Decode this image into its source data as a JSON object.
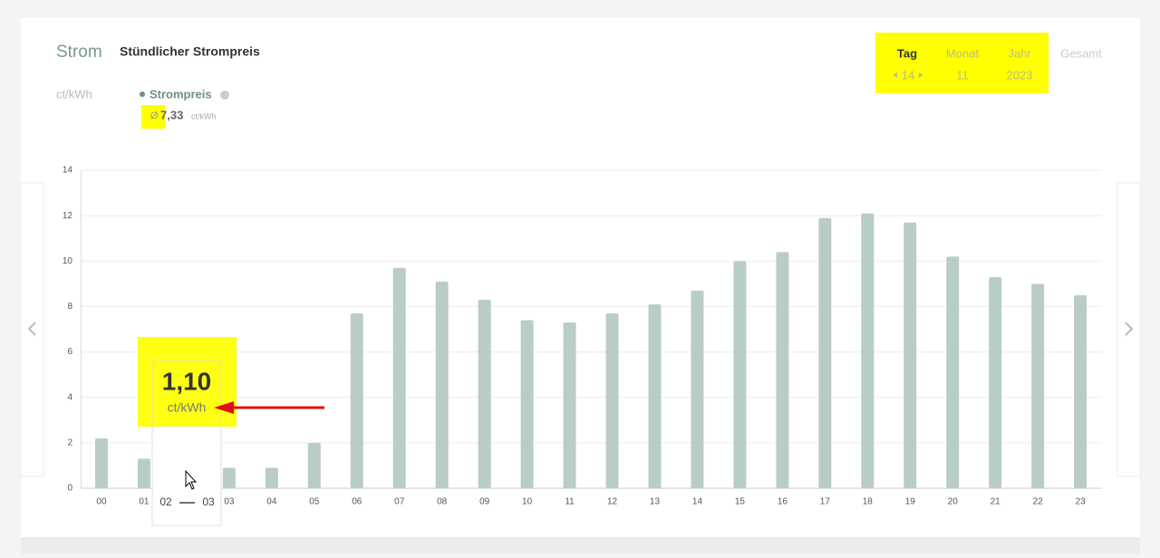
{
  "header": {
    "section": "Strom",
    "title": "Stündlicher Strompreis",
    "unit": "ct/kWh"
  },
  "summary": {
    "average_symbol": "Ø",
    "average": "7,33",
    "unit": "ct/kWh"
  },
  "nav": {
    "tabs": [
      {
        "label": "Tag",
        "value": "14"
      },
      {
        "label": "Monat",
        "value": "11"
      },
      {
        "label": "Jahr",
        "value": "2023"
      },
      {
        "label": "Gesamt"
      }
    ]
  },
  "tooltip": {
    "value": "1,10",
    "unit": "ct/kWh",
    "from": "02",
    "to": "03"
  },
  "chart_data": {
    "type": "bar",
    "categories": [
      "00",
      "01",
      "02",
      "03",
      "04",
      "05",
      "06",
      "07",
      "08",
      "09",
      "10",
      "11",
      "12",
      "13",
      "14",
      "15",
      "16",
      "17",
      "18",
      "19",
      "20",
      "21",
      "22",
      "23"
    ],
    "series": [
      {
        "name": "Strompreis",
        "color": "#b9cdc5",
        "values": [
          2.2,
          1.3,
          1.1,
          0.9,
          0.9,
          2.0,
          7.7,
          9.7,
          9.1,
          8.3,
          7.4,
          7.3,
          7.7,
          8.1,
          8.7,
          10.0,
          10.4,
          11.9,
          12.1,
          11.7,
          10.2,
          9.3,
          9.0,
          8.5
        ]
      }
    ],
    "ylim": [
      0,
      14
    ],
    "yticks": [
      0,
      2,
      4,
      6,
      8,
      10,
      12,
      14
    ],
    "grid": true
  }
}
